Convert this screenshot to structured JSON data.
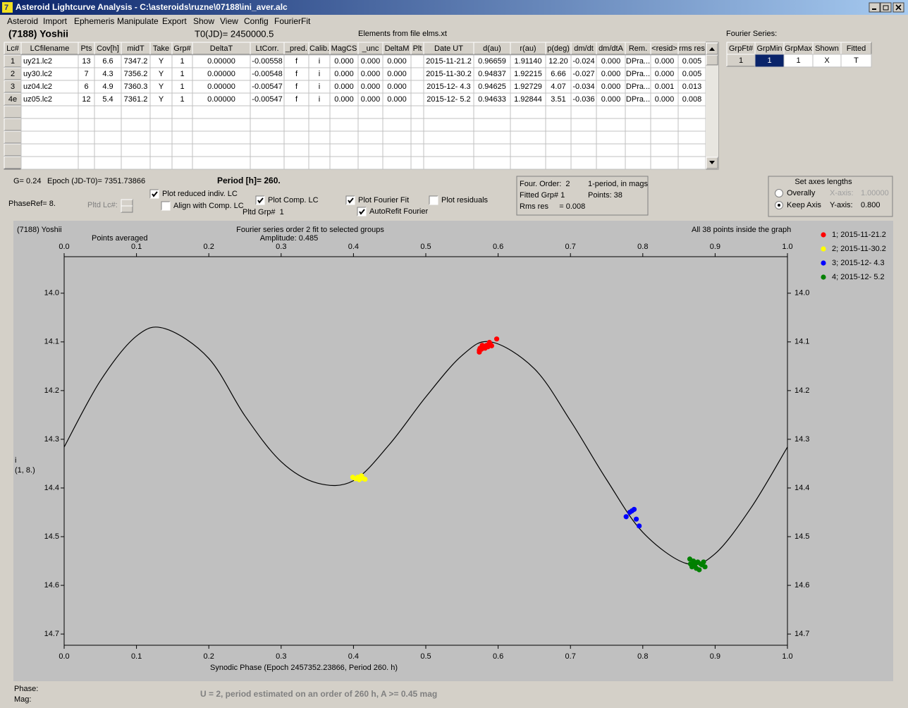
{
  "window": {
    "title": "Asteroid Lightcurve Analysis - C:\\asteroids\\ruzne\\07188\\ini_aver.alc"
  },
  "menu": [
    "Asteroid",
    "Import",
    "Ephemeris",
    "Manipulate",
    "Export",
    "Show",
    "View",
    "Config",
    "FourierFit"
  ],
  "header": {
    "object": "(7188) Yoshii",
    "t0": "T0(JD)= 2450000.5",
    "elements": "Elements from file elms.xt"
  },
  "table": {
    "columns": [
      "Lc#",
      "LCfilename",
      "Pts",
      "Cov[h]",
      "midT",
      "Take",
      "Grp#",
      "DeltaT",
      "LtCorr.",
      "_pred.",
      "Calib.",
      "MagCS",
      "_unc",
      "DeltaM",
      "Plt",
      "Date UT",
      "d(au)",
      "r(au)",
      "p(deg)",
      "dm/dt",
      "dm/dtA",
      "Rem.",
      "<resid>",
      "rms res"
    ],
    "rows": [
      [
        "1",
        "uy21.lc2",
        "13",
        "6.6",
        "7347.2",
        "Y",
        "1",
        "0.00000",
        "-0.00558",
        "f",
        "i",
        "0.000",
        "0.000",
        "0.000",
        null,
        "2015-11-21.2",
        "0.96659",
        "1.91140",
        "12.20",
        "-0.024",
        "0.000",
        "DPra...",
        "0.000",
        "0.005"
      ],
      [
        "2",
        "uy30.lc2",
        "7",
        "4.3",
        "7356.2",
        "Y",
        "1",
        "0.00000",
        "-0.00548",
        "f",
        "i",
        "0.000",
        "0.000",
        "0.000",
        null,
        "2015-11-30.2",
        "0.94837",
        "1.92215",
        "6.66",
        "-0.027",
        "0.000",
        "DPra...",
        "0.000",
        "0.005"
      ],
      [
        "3",
        "uz04.lc2",
        "6",
        "4.9",
        "7360.3",
        "Y",
        "1",
        "0.00000",
        "-0.00547",
        "f",
        "i",
        "0.000",
        "0.000",
        "0.000",
        null,
        "2015-12- 4.3",
        "0.94625",
        "1.92729",
        "4.07",
        "-0.034",
        "0.000",
        "DPra...",
        "0.001",
        "0.013"
      ],
      [
        "4e",
        "uz05.lc2",
        "12",
        "5.4",
        "7361.2",
        "Y",
        "1",
        "0.00000",
        "-0.00547",
        "f",
        "i",
        "0.000",
        "0.000",
        "0.000",
        null,
        "2015-12- 5.2",
        "0.94633",
        "1.92844",
        "3.51",
        "-0.036",
        "0.000",
        "DPra...",
        "0.000",
        "0.008"
      ]
    ]
  },
  "fourier_table": {
    "title": "Fourier Series:",
    "columns": [
      "GrpFt#",
      "GrpMin",
      "GrpMax",
      "Shown",
      "Fitted"
    ],
    "rows": [
      [
        "1",
        "1",
        "1",
        "X",
        "T"
      ]
    ]
  },
  "controls": {
    "g": "G= 0.24",
    "epoch": "Epoch (JD-T0)= 7351.73866",
    "period": "Period [h]= 260.",
    "phase_ref": "PhaseRef= 8.",
    "pltd_lc": "Pltd Lc#:",
    "pltd_grp": "Pltd Grp#  1",
    "checkboxes": [
      {
        "label": "Plot reduced indiv. LC",
        "checked": true
      },
      {
        "label": "Align with Comp. LC",
        "checked": false
      },
      {
        "label": "Plot Comp. LC",
        "checked": true
      },
      {
        "label": "Plot Fourier Fit",
        "checked": true
      },
      {
        "label": "AutoRefit Fourier",
        "checked": true
      },
      {
        "label": "Plot residuals",
        "checked": false
      }
    ]
  },
  "info": {
    "order": "Four. Order:  2",
    "mode": "1-period, in mags",
    "fitted": "Fitted Grp# 1",
    "points": "Points: 38",
    "rms": "Rms res     = 0.008"
  },
  "axes_box": {
    "title": "Set axes lengths",
    "options": [
      {
        "label": "Overally",
        "selected": false
      },
      {
        "label": "Keep Axis",
        "selected": true
      }
    ],
    "x_label": "X-axis:",
    "x_value": "1.00000",
    "y_label": "Y-axis:",
    "y_value": "0.800"
  },
  "chart_data": {
    "type": "scatter",
    "title": "Fourier series order 2 fit to selected groups",
    "object": "(7188) Yoshii",
    "mode": "Points averaged",
    "amplitude": "Amplitude: 0.485",
    "note": "All 38 points inside the graph",
    "x_label": "Synodic Phase (Epoch 2457352.23866, Period 260. h)",
    "y_label": "i",
    "y_sublabel": "(1, 8.)",
    "xlim": [
      0,
      1
    ],
    "ylim": [
      13.925,
      14.723
    ],
    "y_reversed": true,
    "xticks": [
      {
        "value": 0,
        "label": "0.0"
      },
      0.1,
      0.2,
      0.3,
      0.4,
      0.5,
      0.6,
      0.7,
      0.8,
      0.9,
      {
        "value": 1,
        "label": "1.0"
      }
    ],
    "yticks": [
      {
        "value": 14,
        "label": "14.0"
      },
      14.1,
      14.2,
      14.3,
      14.4,
      14.5,
      14.6,
      14.7
    ],
    "fit": {
      "color": "#000000",
      "x": [
        0,
        0.05,
        0.1,
        0.14,
        0.2,
        0.25,
        0.3,
        0.35,
        0.4,
        0.45,
        0.5,
        0.55,
        0.59,
        0.65,
        0.7,
        0.75,
        0.8,
        0.86,
        0.9,
        0.95,
        1
      ],
      "values": [
        14.316,
        14.18,
        14.088,
        14.073,
        14.134,
        14.252,
        14.346,
        14.39,
        14.385,
        14.31,
        14.213,
        14.128,
        14.1,
        14.155,
        14.262,
        14.383,
        14.491,
        14.555,
        14.535,
        14.44,
        14.316
      ]
    },
    "series": [
      {
        "name": "1; 2015-11-21.2",
        "color": "#ff0000",
        "x": [
          0.574,
          0.575,
          0.577,
          0.58,
          0.582,
          0.584,
          0.586,
          0.589,
          0.591,
          0.598,
          0.574,
          0.578,
          0.588
        ],
        "values": [
          14.117,
          14.113,
          14.115,
          14.11,
          14.113,
          14.107,
          14.11,
          14.104,
          14.108,
          14.094,
          14.121,
          14.107,
          14.101
        ]
      },
      {
        "name": "2; 2015-11-30.2",
        "color": "#ffff00",
        "x": [
          0.399,
          0.403,
          0.406,
          0.408,
          0.411,
          0.413,
          0.416
        ],
        "values": [
          14.378,
          14.381,
          14.378,
          14.383,
          14.375,
          14.38,
          14.382
        ]
      },
      {
        "name": "3; 2015-12- 4.3",
        "color": "#0000ff",
        "x": [
          0.777,
          0.782,
          0.785,
          0.788,
          0.791,
          0.795
        ],
        "values": [
          14.459,
          14.45,
          14.447,
          14.444,
          14.464,
          14.478
        ]
      },
      {
        "name": "4; 2015-12- 5.2",
        "color": "#008000",
        "x": [
          0.865,
          0.866,
          0.868,
          0.87,
          0.872,
          0.874,
          0.876,
          0.878,
          0.88,
          0.882,
          0.884,
          0.886
        ],
        "values": [
          14.546,
          14.556,
          14.562,
          14.55,
          14.558,
          14.565,
          14.552,
          14.568,
          14.556,
          14.558,
          14.552,
          14.562
        ]
      }
    ]
  },
  "status": {
    "phase": "Phase:",
    "mag": "Mag:",
    "message": "U = 2, period estimated on an order of 260 h, A >= 0.45 mag"
  }
}
